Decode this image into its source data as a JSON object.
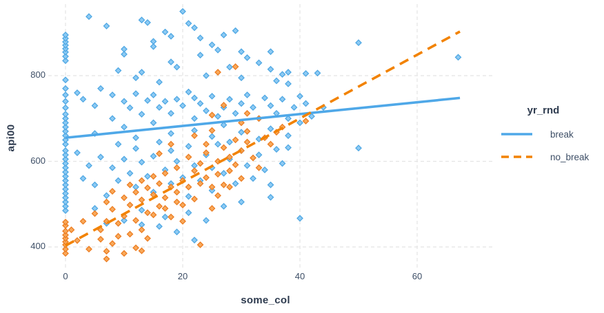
{
  "chart_data": {
    "type": "scatter",
    "title": "",
    "xlabel": "some_col",
    "ylabel": "api00",
    "x_ticks": [
      "0",
      "20",
      "40",
      "60"
    ],
    "y_ticks": [
      "400",
      "600",
      "800"
    ],
    "x_tick_values": [
      0,
      20,
      40,
      60
    ],
    "y_tick_values": [
      400,
      600,
      800
    ],
    "xlim": [
      -3,
      73
    ],
    "ylim": [
      348,
      967
    ],
    "grid": "dashed-light-gray",
    "legend": {
      "title": "yr_rnd",
      "position": "right",
      "entries": [
        {
          "label": "break",
          "line_style": "solid",
          "color": "#4fa8e8"
        },
        {
          "label": "no_break",
          "line_style": "dashed",
          "color": "#f28200"
        }
      ]
    },
    "colors": {
      "break_fill": "#87c7f2",
      "break_stroke": "#4fa8e4",
      "no_break_fill": "#f8a452",
      "no_break_stroke": "#ed7d21",
      "break_line": "#4fa8e8",
      "no_break_line": "#f28200",
      "gridline": "#e4e4e4",
      "tick_text": "#3d4e66",
      "title_text": "#2e3b4f"
    },
    "trend_lines": [
      {
        "name": "break",
        "style": "solid",
        "color": "#4fa8e8",
        "from": [
          0,
          655
        ],
        "to": [
          67.3,
          748
        ]
      },
      {
        "name": "no_break",
        "style": "dashed",
        "color": "#f28200",
        "from": [
          0,
          403
        ],
        "to": [
          67.3,
          903
        ]
      }
    ],
    "series": [
      {
        "name": "break",
        "marker": "diamond",
        "points": [
          [
            0,
            485
          ],
          [
            0,
            495
          ],
          [
            0,
            505
          ],
          [
            0,
            515
          ],
          [
            0,
            525
          ],
          [
            0,
            535
          ],
          [
            0,
            545
          ],
          [
            0,
            555
          ],
          [
            0,
            565
          ],
          [
            0,
            575
          ],
          [
            0,
            585
          ],
          [
            0,
            595
          ],
          [
            0,
            605
          ],
          [
            0,
            615
          ],
          [
            0,
            625
          ],
          [
            0,
            640
          ],
          [
            0,
            650
          ],
          [
            0,
            660
          ],
          [
            0,
            670
          ],
          [
            0,
            680
          ],
          [
            0,
            690
          ],
          [
            0,
            700
          ],
          [
            0,
            710
          ],
          [
            0,
            725
          ],
          [
            0,
            740
          ],
          [
            0,
            755
          ],
          [
            0,
            770
          ],
          [
            0,
            790
          ],
          [
            0,
            835
          ],
          [
            0,
            845
          ],
          [
            0,
            855
          ],
          [
            0,
            863
          ],
          [
            0,
            871
          ],
          [
            0,
            879
          ],
          [
            0,
            887
          ],
          [
            0,
            895
          ],
          [
            4,
            938
          ],
          [
            7,
            916
          ],
          [
            9,
            812
          ],
          [
            10,
            862
          ],
          [
            10,
            850
          ],
          [
            12,
            795
          ],
          [
            13,
            930
          ],
          [
            13,
            808
          ],
          [
            14,
            924
          ],
          [
            15,
            880
          ],
          [
            15,
            868
          ],
          [
            16,
            785
          ],
          [
            17,
            902
          ],
          [
            18,
            892
          ],
          [
            18,
            832
          ],
          [
            19,
            820
          ],
          [
            20,
            950
          ],
          [
            21,
            922
          ],
          [
            22,
            912
          ],
          [
            23,
            888
          ],
          [
            23,
            848
          ],
          [
            25,
            872
          ],
          [
            26,
            860
          ],
          [
            27,
            895
          ],
          [
            28,
            820
          ],
          [
            29,
            905
          ],
          [
            30,
            856
          ],
          [
            30,
            795
          ],
          [
            31,
            842
          ],
          [
            33,
            830
          ],
          [
            35,
            856
          ],
          [
            35,
            815
          ],
          [
            36,
            788
          ],
          [
            37,
            803
          ],
          [
            38,
            808
          ],
          [
            41,
            805
          ],
          [
            43,
            806
          ],
          [
            38,
            781
          ],
          [
            50,
            877
          ],
          [
            67,
            843
          ],
          [
            24,
            800
          ],
          [
            2,
            760
          ],
          [
            3,
            745
          ],
          [
            5,
            730
          ],
          [
            6,
            770
          ],
          [
            8,
            755
          ],
          [
            8,
            700
          ],
          [
            10,
            740
          ],
          [
            11,
            725
          ],
          [
            12,
            758
          ],
          [
            13,
            710
          ],
          [
            14,
            742
          ],
          [
            15,
            755
          ],
          [
            16,
            726
          ],
          [
            17,
            740
          ],
          [
            18,
            712
          ],
          [
            19,
            745
          ],
          [
            20,
            730
          ],
          [
            21,
            762
          ],
          [
            22,
            748
          ],
          [
            22,
            700
          ],
          [
            23,
            735
          ],
          [
            24,
            718
          ],
          [
            25,
            752
          ],
          [
            26,
            705
          ],
          [
            27,
            726
          ],
          [
            28,
            745
          ],
          [
            29,
            712
          ],
          [
            30,
            735
          ],
          [
            31,
            755
          ],
          [
            32,
            726
          ],
          [
            33,
            700
          ],
          [
            34,
            748
          ],
          [
            35,
            730
          ],
          [
            36,
            712
          ],
          [
            37,
            745
          ],
          [
            38,
            700
          ],
          [
            39,
            726
          ],
          [
            40,
            752
          ],
          [
            41,
            735
          ],
          [
            27,
            685
          ],
          [
            22,
            672
          ],
          [
            30,
            668
          ],
          [
            35,
            676
          ],
          [
            38,
            660
          ],
          [
            15,
            690
          ],
          [
            10,
            680
          ],
          [
            5,
            665
          ],
          [
            12,
            655
          ],
          [
            18,
            665
          ],
          [
            25,
            658
          ],
          [
            33,
            652
          ],
          [
            40,
            690
          ],
          [
            42,
            705
          ],
          [
            44,
            726
          ],
          [
            2,
            620
          ],
          [
            3,
            560
          ],
          [
            4,
            590
          ],
          [
            5,
            545
          ],
          [
            6,
            610
          ],
          [
            7,
            520
          ],
          [
            8,
            585
          ],
          [
            9,
            640
          ],
          [
            9,
            555
          ],
          [
            10,
            605
          ],
          [
            11,
            572
          ],
          [
            12,
            630
          ],
          [
            12,
            540
          ],
          [
            13,
            598
          ],
          [
            14,
            565
          ],
          [
            15,
            612
          ],
          [
            15,
            528
          ],
          [
            16,
            645
          ],
          [
            17,
            580
          ],
          [
            18,
            625
          ],
          [
            18,
            548
          ],
          [
            19,
            600
          ],
          [
            20,
            562
          ],
          [
            21,
            635
          ],
          [
            21,
            518
          ],
          [
            22,
            590
          ],
          [
            23,
            555
          ],
          [
            24,
            615
          ],
          [
            25,
            585
          ],
          [
            25,
            532
          ],
          [
            26,
            640
          ],
          [
            27,
            572
          ],
          [
            28,
            605
          ],
          [
            29,
            548
          ],
          [
            30,
            625
          ],
          [
            31,
            590
          ],
          [
            32,
            560
          ],
          [
            33,
            615
          ],
          [
            34,
            580
          ],
          [
            35,
            545
          ],
          [
            36,
            628
          ],
          [
            37,
            595
          ],
          [
            38,
            632
          ],
          [
            21,
            480
          ],
          [
            24,
            462
          ],
          [
            17,
            470
          ],
          [
            13,
            486
          ],
          [
            27,
            495
          ],
          [
            30,
            505
          ],
          [
            35,
            516
          ],
          [
            40,
            467
          ],
          [
            50,
            631
          ],
          [
            28,
            645
          ],
          [
            19,
            435
          ],
          [
            22,
            416
          ],
          [
            7,
            455
          ],
          [
            13,
            452
          ],
          [
            16,
            448
          ],
          [
            10,
            462
          ],
          [
            5,
            490
          ]
        ]
      },
      {
        "name": "no_break",
        "marker": "diamond",
        "points": [
          [
            0,
            385
          ],
          [
            0,
            395
          ],
          [
            0,
            405
          ],
          [
            0,
            412
          ],
          [
            0,
            420
          ],
          [
            0,
            428
          ],
          [
            0,
            437
          ],
          [
            0,
            450
          ],
          [
            0,
            458
          ],
          [
            7,
            390
          ],
          [
            7,
            372
          ],
          [
            13,
            391
          ],
          [
            1,
            440
          ],
          [
            2,
            415
          ],
          [
            3,
            460
          ],
          [
            4,
            395
          ],
          [
            5,
            478
          ],
          [
            6,
            440
          ],
          [
            6,
            418
          ],
          [
            7,
            505
          ],
          [
            7,
            460
          ],
          [
            8,
            530
          ],
          [
            8,
            488
          ],
          [
            8,
            408
          ],
          [
            9,
            455
          ],
          [
            9,
            425
          ],
          [
            10,
            515
          ],
          [
            10,
            472
          ],
          [
            10,
            385
          ],
          [
            11,
            545
          ],
          [
            11,
            498
          ],
          [
            11,
            430
          ],
          [
            12,
            528
          ],
          [
            12,
            462
          ],
          [
            12,
            398
          ],
          [
            13,
            555
          ],
          [
            13,
            510
          ],
          [
            13,
            440
          ],
          [
            14,
            538
          ],
          [
            14,
            480
          ],
          [
            14,
            420
          ],
          [
            15,
            565
          ],
          [
            15,
            522
          ],
          [
            15,
            475
          ],
          [
            16,
            495
          ],
          [
            16,
            548
          ],
          [
            16,
            618
          ],
          [
            17,
            572
          ],
          [
            17,
            515
          ],
          [
            17,
            490
          ],
          [
            18,
            540
          ],
          [
            18,
            470
          ],
          [
            18,
            640
          ],
          [
            19,
            585
          ],
          [
            19,
            528
          ],
          [
            19,
            505
          ],
          [
            20,
            555
          ],
          [
            20,
            498
          ],
          [
            20,
            460
          ],
          [
            21,
            610
          ],
          [
            21,
            540
          ],
          [
            22,
            578
          ],
          [
            22,
            512
          ],
          [
            22,
            660
          ],
          [
            23,
            595
          ],
          [
            23,
            548
          ],
          [
            23,
            405
          ],
          [
            24,
            620
          ],
          [
            24,
            562
          ],
          [
            24,
            640
          ],
          [
            25,
            540
          ],
          [
            25,
            490
          ],
          [
            25,
            672
          ],
          [
            26,
            600
          ],
          [
            26,
            570
          ],
          [
            26,
            520
          ],
          [
            27,
            632
          ],
          [
            27,
            545
          ],
          [
            28,
            610
          ],
          [
            28,
            578
          ],
          [
            28,
            540
          ],
          [
            29,
            650
          ],
          [
            29,
            592
          ],
          [
            30,
            625
          ],
          [
            30,
            560
          ],
          [
            30,
            690
          ],
          [
            31,
            645
          ],
          [
            31,
            670
          ],
          [
            32,
            608
          ],
          [
            33,
            585
          ],
          [
            33,
            700
          ],
          [
            34,
            655
          ],
          [
            35,
            640
          ],
          [
            36,
            668
          ],
          [
            37,
            680
          ],
          [
            29,
            821
          ],
          [
            26,
            808
          ],
          [
            41,
            694
          ],
          [
            31,
            712
          ],
          [
            27,
            731
          ],
          [
            25,
            708
          ]
        ]
      }
    ]
  }
}
